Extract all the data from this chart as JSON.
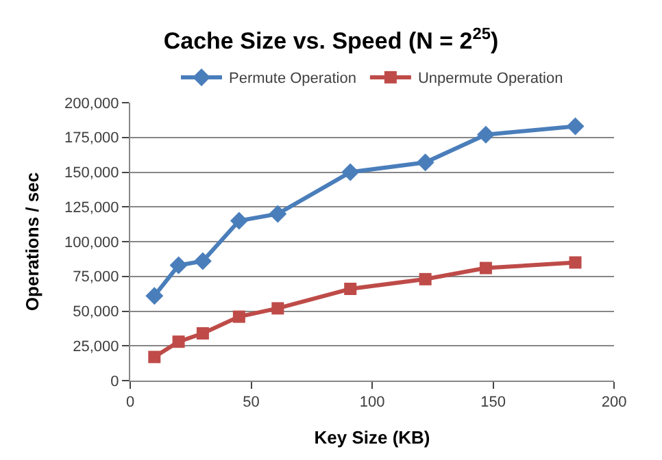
{
  "chart_data": {
    "type": "line",
    "title": "Cache Size vs. Speed (N = 2$^{25}$)",
    "xlabel": "Key Size (KB)",
    "ylabel": "Operations / sec",
    "x": [
      10,
      20,
      30,
      45,
      61,
      91,
      122,
      147,
      184
    ],
    "series": [
      {
        "name": "Permute Operation",
        "color": "#4a7ebb",
        "marker": "diamond",
        "values": [
          61000,
          83000,
          86000,
          115000,
          120000,
          150000,
          157000,
          177000,
          183000
        ]
      },
      {
        "name": "Unpermute Operation",
        "color": "#be4b48",
        "marker": "square",
        "values": [
          17000,
          28000,
          34000,
          46000,
          52000,
          66000,
          73000,
          81000,
          85000
        ]
      }
    ],
    "xlim": [
      0,
      200
    ],
    "xticks": [
      0,
      50,
      100,
      150,
      200
    ],
    "ylim": [
      0,
      200000
    ],
    "yticks": [
      {
        "value": 0,
        "label": "0"
      },
      {
        "value": 25000,
        "label": "25,000"
      },
      {
        "value": 50000,
        "label": "50,000"
      },
      {
        "value": 75000,
        "label": "75,000"
      },
      {
        "value": 100000,
        "label": "100,000"
      },
      {
        "value": 125000,
        "label": "125,000"
      },
      {
        "value": 150000,
        "label": "150,000"
      },
      {
        "value": 175000,
        "label": "175,000"
      },
      {
        "value": 200000,
        "label": "200,000"
      }
    ],
    "grid": "y",
    "legend": "top"
  }
}
